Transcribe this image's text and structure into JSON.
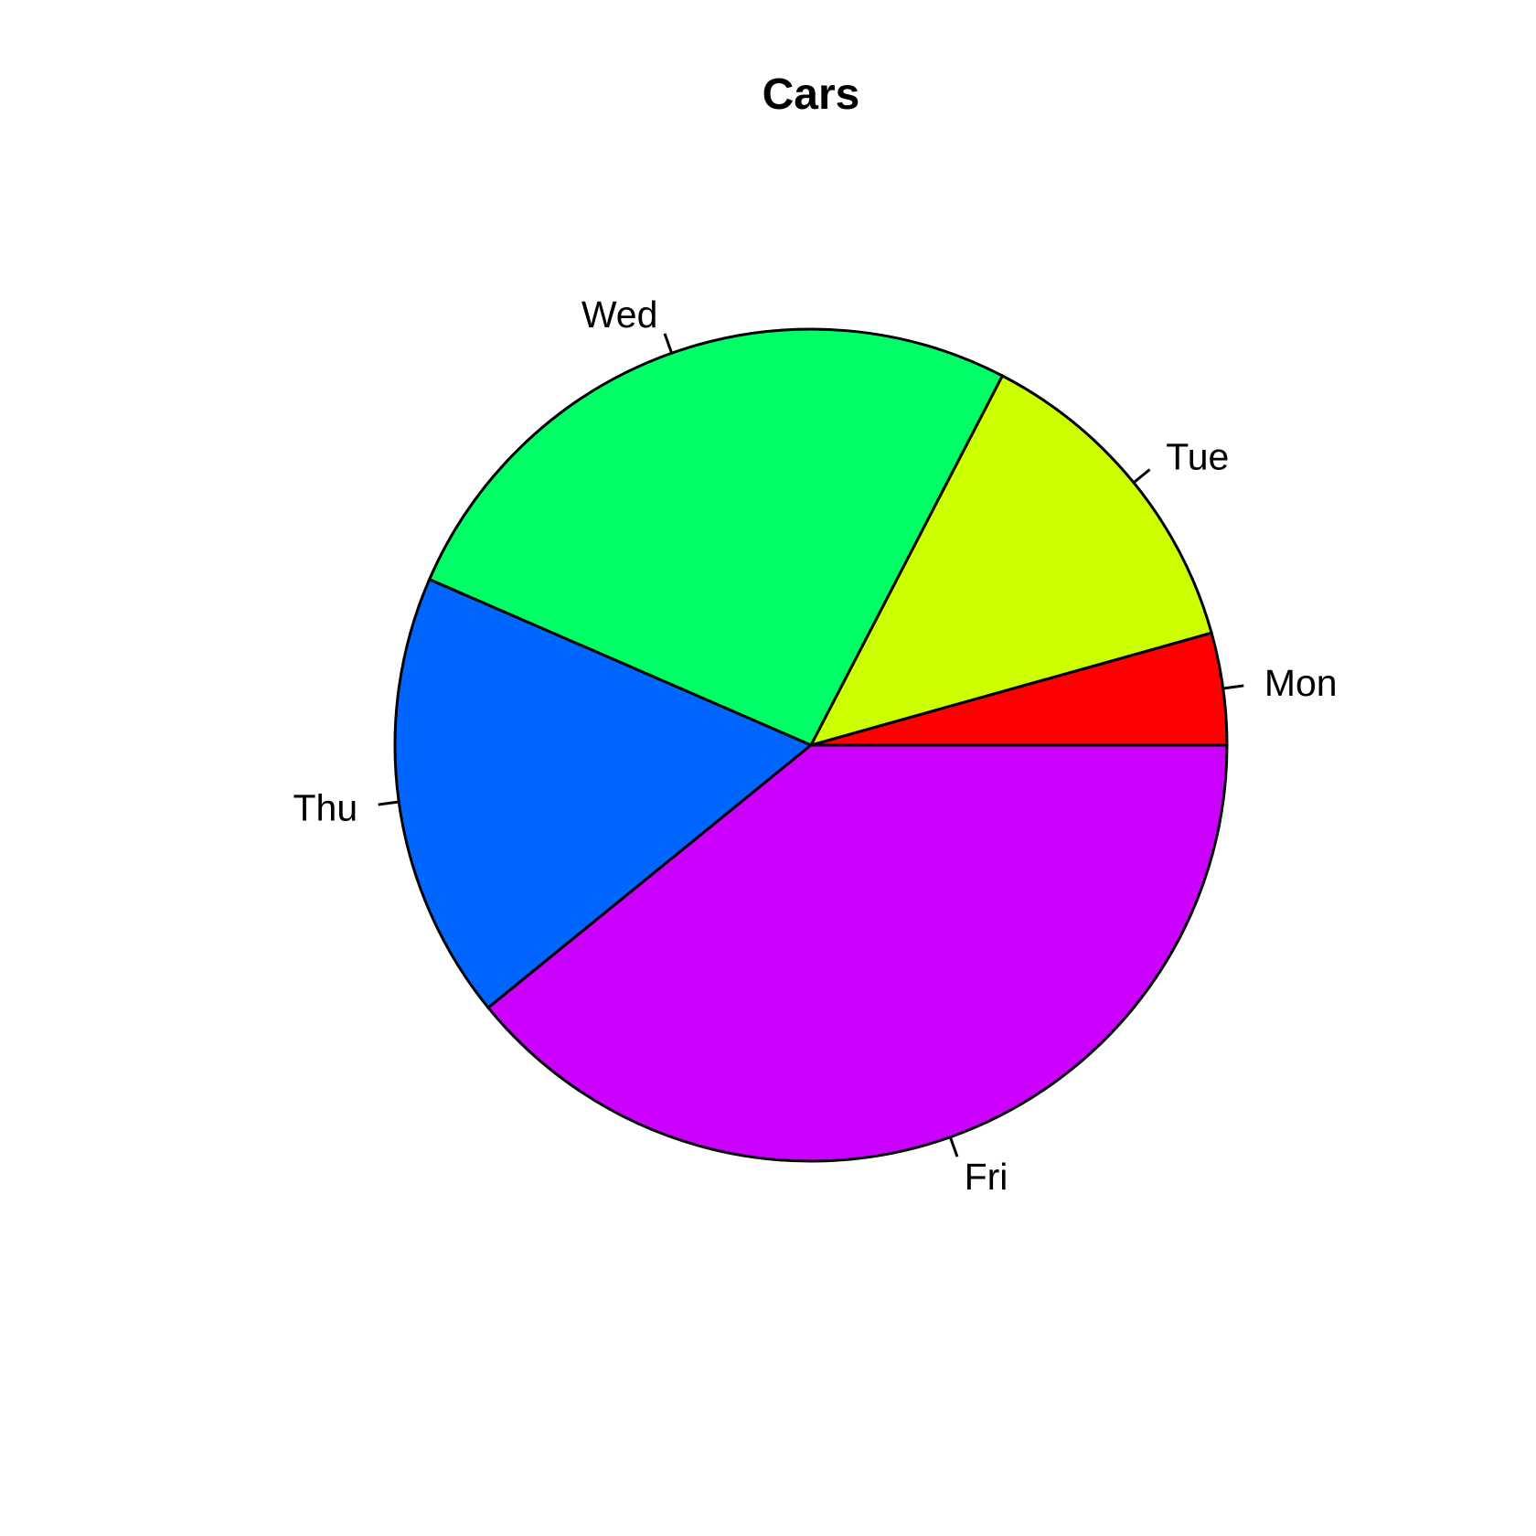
{
  "chart_data": {
    "type": "pie",
    "title": "Cars",
    "categories": [
      "Mon",
      "Tue",
      "Wed",
      "Thu",
      "Fri"
    ],
    "values": [
      1,
      3,
      6,
      4,
      9
    ],
    "fractions": [
      0.0435,
      0.1304,
      0.2609,
      0.1739,
      0.3913
    ],
    "colors": [
      "#FF0000",
      "#CCFF00",
      "#00FF66",
      "#0066FF",
      "#CC00FF"
    ],
    "start_angle_deg": 0,
    "direction": "counterclockwise",
    "stroke_color": "#000000",
    "label_color": "#000000",
    "background_color": "#FFFFFF",
    "legend_position": "none",
    "grid": "off"
  }
}
